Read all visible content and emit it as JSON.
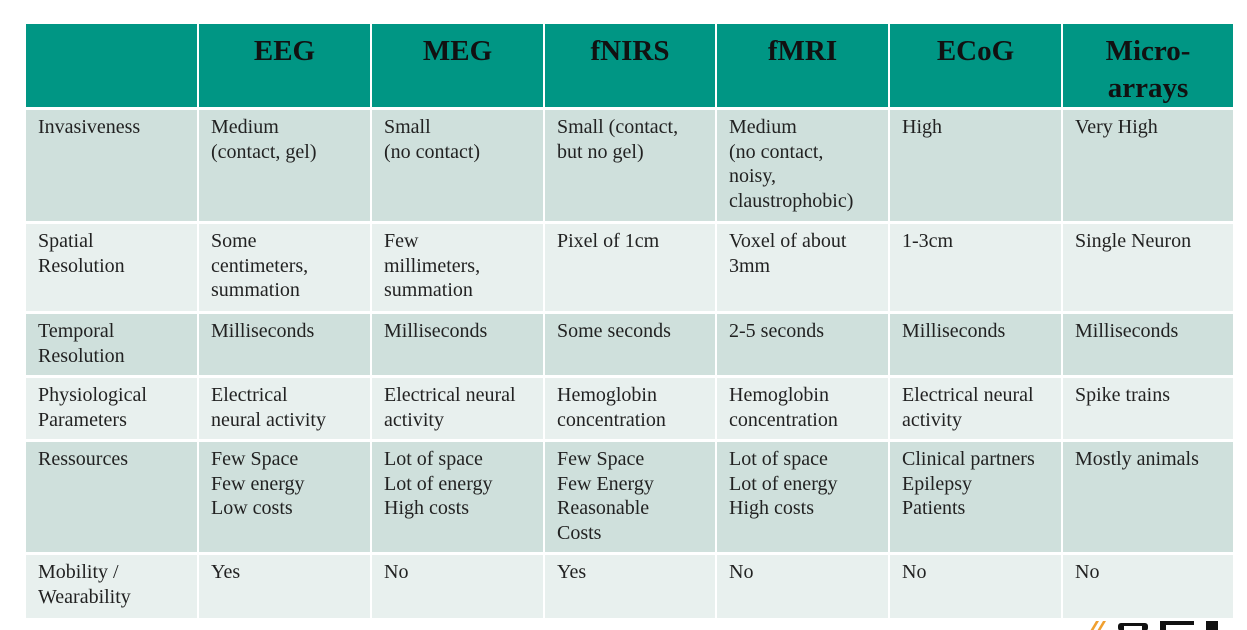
{
  "table": {
    "headers": [
      "",
      "EEG",
      "MEG",
      "fNIRS",
      "fMRI",
      "ECoG",
      "Micro-\narrays"
    ],
    "rows": [
      {
        "label": "Invasiveness",
        "cells": [
          "Medium\n(contact, gel)",
          "Small\n(no contact)",
          "Small (contact,\nbut no gel)",
          "Medium\n(no contact,\nnoisy,\nclaustrophobic)",
          "High",
          "Very High"
        ]
      },
      {
        "label": "Spatial\nResolution",
        "cells": [
          "Some\ncentimeters,\nsummation",
          "Few\nmillimeters,\nsummation",
          "Pixel of 1cm",
          "Voxel of about\n3mm",
          "1-3cm",
          "Single Neuron"
        ]
      },
      {
        "label": "Temporal\nResolution",
        "cells": [
          "Milliseconds",
          "Milliseconds",
          "Some seconds",
          "2-5 seconds",
          "Milliseconds",
          "Milliseconds"
        ]
      },
      {
        "label": "Physiological\nParameters",
        "cells": [
          "Electrical\nneural activity",
          "Electrical neural\nactivity",
          "Hemoglobin\nconcentration",
          "Hemoglobin\nconcentration",
          "Electrical neural\nactivity",
          "Spike trains"
        ]
      },
      {
        "label": "Ressources",
        "cells": [
          "Few Space\nFew energy\nLow costs",
          "Lot of space\nLot of energy\nHigh costs",
          "Few Space\nFew Energy\nReasonable\nCosts",
          "Lot of space\nLot of energy\nHigh costs",
          "Clinical partners\nEpilepsy\nPatients",
          "Mostly animals"
        ]
      },
      {
        "label": "Mobility /\nWearability",
        "cells": [
          "Yes",
          "No",
          "Yes",
          "No",
          "No",
          "No"
        ]
      }
    ]
  },
  "colors": {
    "header_bg": "#009684",
    "row_dark": "#cfe0dc",
    "row_light": "#e8f0ee",
    "logo_orange": "#f0a030"
  },
  "logo": {
    "icon": "partial-logo-icon"
  }
}
